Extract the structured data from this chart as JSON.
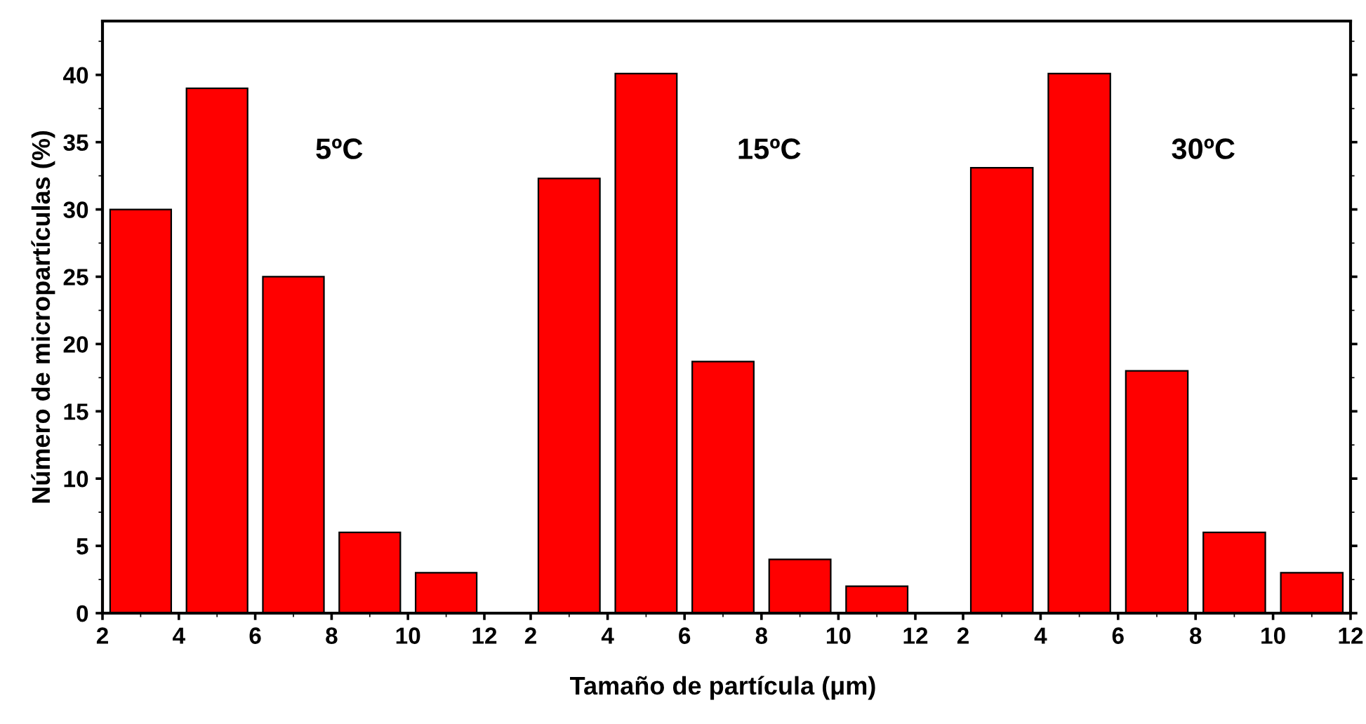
{
  "chart_data": [
    {
      "type": "bar",
      "ylabel": "Número de micropartículas (%)",
      "x": [
        3,
        5,
        7,
        9,
        11
      ],
      "values": [
        30,
        39,
        25,
        6,
        3
      ],
      "color": "#ff0000",
      "xlim": [
        2,
        12
      ],
      "xticks": [
        2,
        4,
        6,
        8,
        10,
        12
      ],
      "ylim": [
        0,
        44
      ],
      "yticks": [
        0,
        5,
        10,
        15,
        20,
        25,
        30,
        35,
        40
      ],
      "annotations": [
        "5ºC"
      ]
    },
    {
      "type": "bar",
      "xlabel": "Tamaño de partícula (μm)",
      "x": [
        3,
        5,
        7,
        9,
        11
      ],
      "values": [
        32.3,
        40.1,
        18.7,
        4,
        2
      ],
      "color": "#ff0000",
      "xlim": [
        2,
        12
      ],
      "xticks": [
        2,
        4,
        6,
        8,
        10,
        12
      ],
      "ylim": [
        0,
        44
      ],
      "yticks": [
        0,
        5,
        10,
        15,
        20,
        25,
        30,
        35,
        40
      ],
      "tick_labels": "x",
      "annotations": [
        "15ºC"
      ]
    },
    {
      "type": "bar",
      "x": [
        3,
        5,
        7,
        9,
        11
      ],
      "values": [
        33.1,
        40.1,
        18,
        6,
        3
      ],
      "color": "#ff0000",
      "xlim": [
        2,
        12
      ],
      "xticks": [
        2,
        4,
        6,
        8,
        10,
        12
      ],
      "ylim": [
        0,
        44
      ],
      "yticks": [
        0,
        5,
        10,
        15,
        20,
        25,
        30,
        35,
        40
      ],
      "tick_labels": "x",
      "annotations": [
        "30ºC"
      ]
    }
  ]
}
